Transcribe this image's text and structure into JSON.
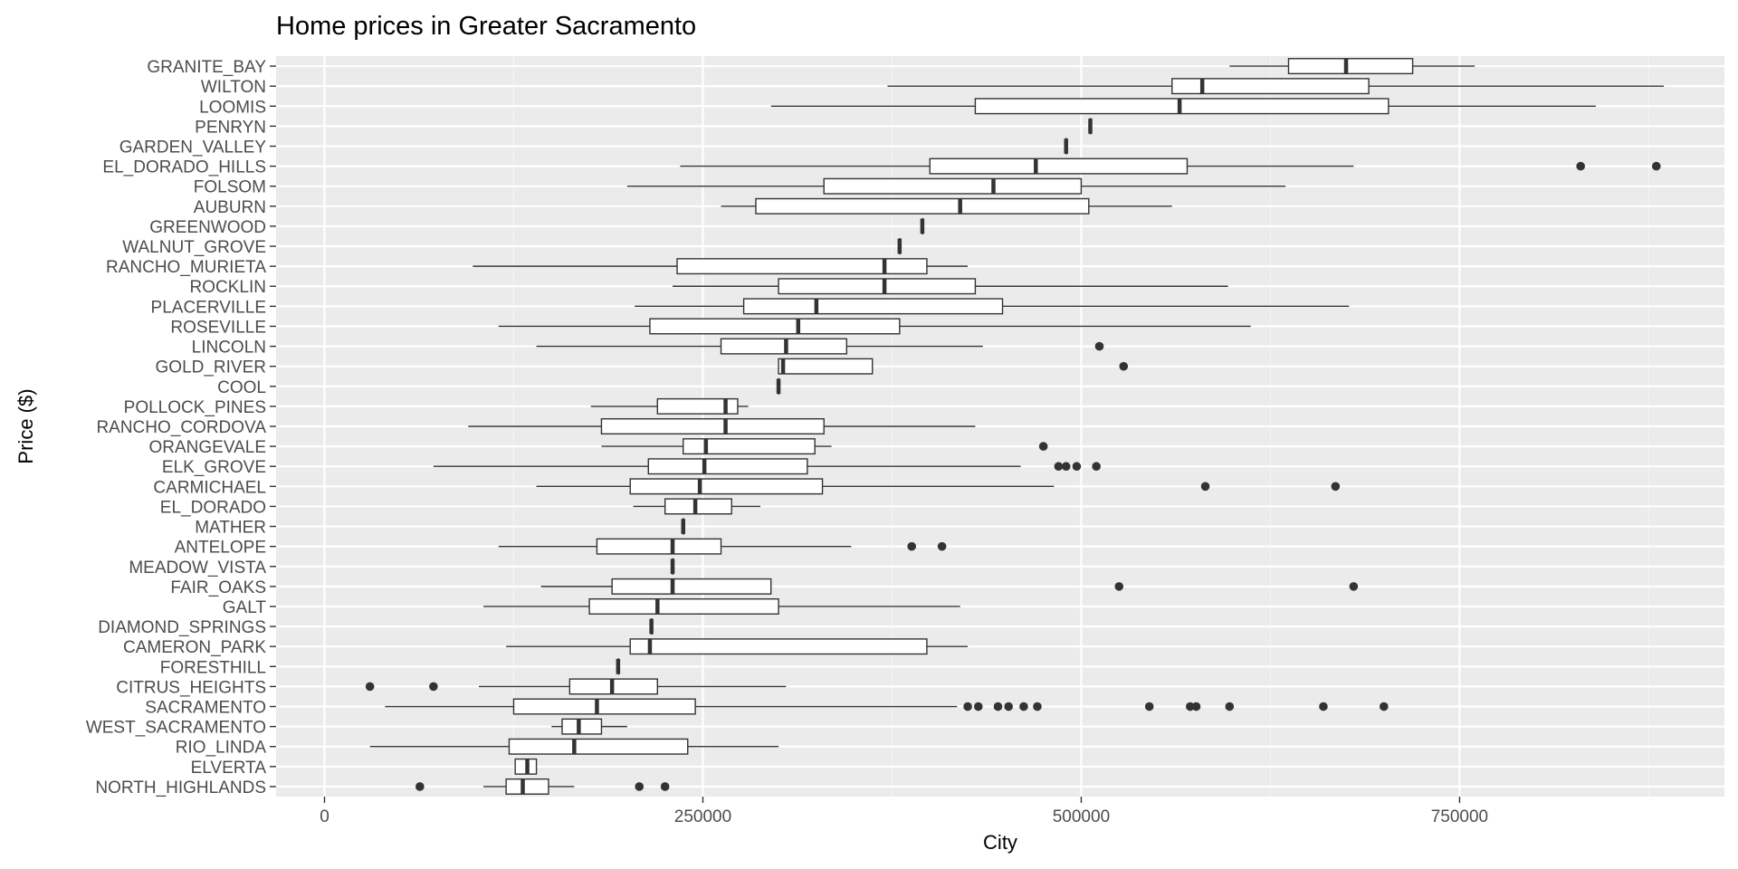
{
  "chart_data": {
    "type": "boxplot",
    "orientation": "horizontal",
    "title": "Home prices in Greater Sacramento",
    "xlabel": "City",
    "ylabel": "Price ($)",
    "xlim": [
      -32000,
      925000
    ],
    "xticks": [
      0,
      250000,
      500000,
      750000
    ],
    "xtick_labels": [
      "0",
      "250000",
      "500000",
      "750000"
    ],
    "grid": true,
    "legend": "none",
    "colors": {
      "panel": "#ebebeb",
      "grid_major": "#ffffff",
      "grid_minor": "#f5f5f5",
      "box_fill": "#ffffff",
      "line": "#333333",
      "tick_text": "#4d4d4d"
    },
    "categories": [
      "GRANITE_BAY",
      "WILTON",
      "LOOMIS",
      "PENRYN",
      "GARDEN_VALLEY",
      "EL_DORADO_HILLS",
      "FOLSOM",
      "AUBURN",
      "GREENWOOD",
      "WALNUT_GROVE",
      "RANCHO_MURIETA",
      "ROCKLIN",
      "PLACERVILLE",
      "ROSEVILLE",
      "LINCOLN",
      "GOLD_RIVER",
      "COOL",
      "POLLOCK_PINES",
      "RANCHO_CORDOVA",
      "ORANGEVALE",
      "ELK_GROVE",
      "CARMICHAEL",
      "EL_DORADO",
      "MATHER",
      "ANTELOPE",
      "MEADOW_VISTA",
      "FAIR_OAKS",
      "GALT",
      "DIAMOND_SPRINGS",
      "CAMERON_PARK",
      "FORESTHILL",
      "CITRUS_HEIGHTS",
      "SACRAMENTO",
      "WEST_SACRAMENTO",
      "RIO_LINDA",
      "ELVERTA",
      "NORTH_HIGHLANDS"
    ],
    "boxes": [
      {
        "min": 598000,
        "q1": 637000,
        "median": 675000,
        "q3": 719000,
        "max": 760000,
        "outliers": []
      },
      {
        "min": 372000,
        "q1": 560000,
        "median": 580000,
        "q3": 690000,
        "max": 885000,
        "outliers": []
      },
      {
        "min": 295000,
        "q1": 430000,
        "median": 565000,
        "q3": 703000,
        "max": 840000,
        "outliers": []
      },
      {
        "min": 506000,
        "q1": 506000,
        "median": 506000,
        "q3": 506000,
        "max": 506000,
        "outliers": []
      },
      {
        "min": 490000,
        "q1": 490000,
        "median": 490000,
        "q3": 490000,
        "max": 490000,
        "outliers": []
      },
      {
        "min": 235000,
        "q1": 400000,
        "median": 470000,
        "q3": 570000,
        "max": 680000,
        "outliers": [
          830000,
          880000
        ]
      },
      {
        "min": 200000,
        "q1": 330000,
        "median": 442000,
        "q3": 500000,
        "max": 635000,
        "outliers": []
      },
      {
        "min": 262000,
        "q1": 285000,
        "median": 420000,
        "q3": 505000,
        "max": 560000,
        "outliers": []
      },
      {
        "min": 395000,
        "q1": 395000,
        "median": 395000,
        "q3": 395000,
        "max": 395000,
        "outliers": []
      },
      {
        "min": 380000,
        "q1": 380000,
        "median": 380000,
        "q3": 380000,
        "max": 380000,
        "outliers": []
      },
      {
        "min": 98000,
        "q1": 233000,
        "median": 370000,
        "q3": 398000,
        "max": 425000,
        "outliers": []
      },
      {
        "min": 230000,
        "q1": 300000,
        "median": 370000,
        "q3": 430000,
        "max": 597000,
        "outliers": []
      },
      {
        "min": 205000,
        "q1": 277000,
        "median": 325000,
        "q3": 448000,
        "max": 677000,
        "outliers": []
      },
      {
        "min": 115000,
        "q1": 215000,
        "median": 313000,
        "q3": 380000,
        "max": 612000,
        "outliers": []
      },
      {
        "min": 140000,
        "q1": 262000,
        "median": 305000,
        "q3": 345000,
        "max": 435000,
        "outliers": [
          512000
        ]
      },
      {
        "min": 300000,
        "q1": 300000,
        "median": 303000,
        "q3": 362000,
        "max": 362000,
        "outliers": [
          528000
        ]
      },
      {
        "min": 300000,
        "q1": 300000,
        "median": 300000,
        "q3": 300000,
        "max": 300000,
        "outliers": []
      },
      {
        "min": 176000,
        "q1": 220000,
        "median": 265000,
        "q3": 273000,
        "max": 280000,
        "outliers": []
      },
      {
        "min": 95000,
        "q1": 183000,
        "median": 265000,
        "q3": 330000,
        "max": 430000,
        "outliers": []
      },
      {
        "min": 183000,
        "q1": 237000,
        "median": 252000,
        "q3": 324000,
        "max": 335000,
        "outliers": [
          475000
        ]
      },
      {
        "min": 72000,
        "q1": 214000,
        "median": 251000,
        "q3": 319000,
        "max": 460000,
        "outliers": [
          485000,
          490000,
          497000,
          510000
        ]
      },
      {
        "min": 140000,
        "q1": 202000,
        "median": 248000,
        "q3": 329000,
        "max": 482000,
        "outliers": [
          582000,
          668000
        ]
      },
      {
        "min": 204000,
        "q1": 225000,
        "median": 245000,
        "q3": 269000,
        "max": 288000,
        "outliers": []
      },
      {
        "min": 237000,
        "q1": 237000,
        "median": 237000,
        "q3": 237000,
        "max": 237000,
        "outliers": []
      },
      {
        "min": 115000,
        "q1": 180000,
        "median": 230000,
        "q3": 262000,
        "max": 348000,
        "outliers": [
          388000,
          408000
        ]
      },
      {
        "min": 230000,
        "q1": 230000,
        "median": 230000,
        "q3": 230000,
        "max": 230000,
        "outliers": []
      },
      {
        "min": 143000,
        "q1": 190000,
        "median": 230000,
        "q3": 295000,
        "max": 295000,
        "outliers": [
          525000,
          680000
        ]
      },
      {
        "min": 105000,
        "q1": 175000,
        "median": 220000,
        "q3": 300000,
        "max": 420000,
        "outliers": []
      },
      {
        "min": 216000,
        "q1": 216000,
        "median": 216000,
        "q3": 216000,
        "max": 216000,
        "outliers": []
      },
      {
        "min": 120000,
        "q1": 202000,
        "median": 215000,
        "q3": 398000,
        "max": 425000,
        "outliers": []
      },
      {
        "min": 194000,
        "q1": 194000,
        "median": 194000,
        "q3": 194000,
        "max": 194000,
        "outliers": []
      },
      {
        "min": 102000,
        "q1": 162000,
        "median": 190000,
        "q3": 220000,
        "max": 305000,
        "outliers": [
          30000,
          72000
        ]
      },
      {
        "min": 40000,
        "q1": 125000,
        "median": 180000,
        "q3": 245000,
        "max": 418000,
        "outliers": [
          425000,
          432000,
          445000,
          452000,
          462000,
          471000,
          545000,
          572000,
          576000,
          598000,
          660000,
          700000
        ]
      },
      {
        "min": 150000,
        "q1": 157000,
        "median": 168000,
        "q3": 183000,
        "max": 200000,
        "outliers": []
      },
      {
        "min": 30000,
        "q1": 122000,
        "median": 165000,
        "q3": 240000,
        "max": 300000,
        "outliers": []
      },
      {
        "min": 126000,
        "q1": 126000,
        "median": 134000,
        "q3": 140000,
        "max": 140000,
        "outliers": []
      },
      {
        "min": 105000,
        "q1": 120000,
        "median": 131000,
        "q3": 148000,
        "max": 165000,
        "outliers": [
          63000,
          208000,
          225000
        ]
      }
    ]
  }
}
